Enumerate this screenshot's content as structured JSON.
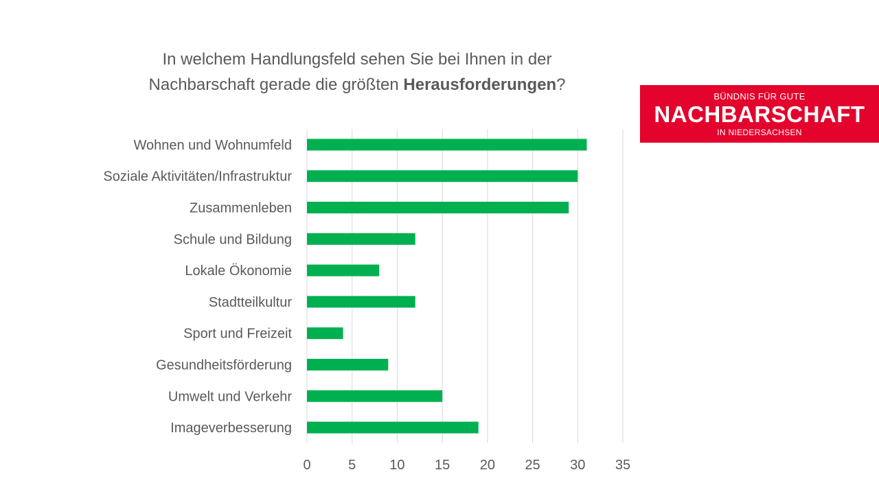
{
  "title": {
    "line1": "In welchem Handlungsfeld sehen Sie bei Ihnen in der",
    "line2_prefix": "Nachbarschaft gerade die größten ",
    "line2_bold": "Herausforderungen",
    "line2_suffix": "?"
  },
  "logo": {
    "top_text": "BÜNDNIS FÜR GUTE",
    "main_text": "NACHBARSCHAFT",
    "bottom_text": "IN NIEDERSACHSEN",
    "color": "#e3032c"
  },
  "chart_data": {
    "type": "bar",
    "orientation": "horizontal",
    "title": "In welchem Handlungsfeld sehen Sie bei Ihnen in der Nachbarschaft gerade die größten Herausforderungen?",
    "categories": [
      "Wohnen und Wohnumfeld",
      "Soziale Aktivitäten/Infrastruktur",
      "Zusammenleben",
      "Schule und Bildung",
      "Lokale Ökonomie",
      "Stadtteilkultur",
      "Sport und Freizeit",
      "Gesundheitsförderung",
      "Umwelt und Verkehr",
      "Imageverbesserung"
    ],
    "values": [
      31,
      30,
      29,
      12,
      8,
      12,
      4,
      9,
      15,
      19
    ],
    "xlim": [
      0,
      35
    ],
    "xticks": [
      "0",
      "5",
      "10",
      "15",
      "20",
      "25",
      "30",
      "35"
    ],
    "xlabel": "",
    "ylabel": "",
    "grid": true,
    "legend": "none",
    "bar_color": "#00b050",
    "grid_color": "#d9d9d9"
  }
}
